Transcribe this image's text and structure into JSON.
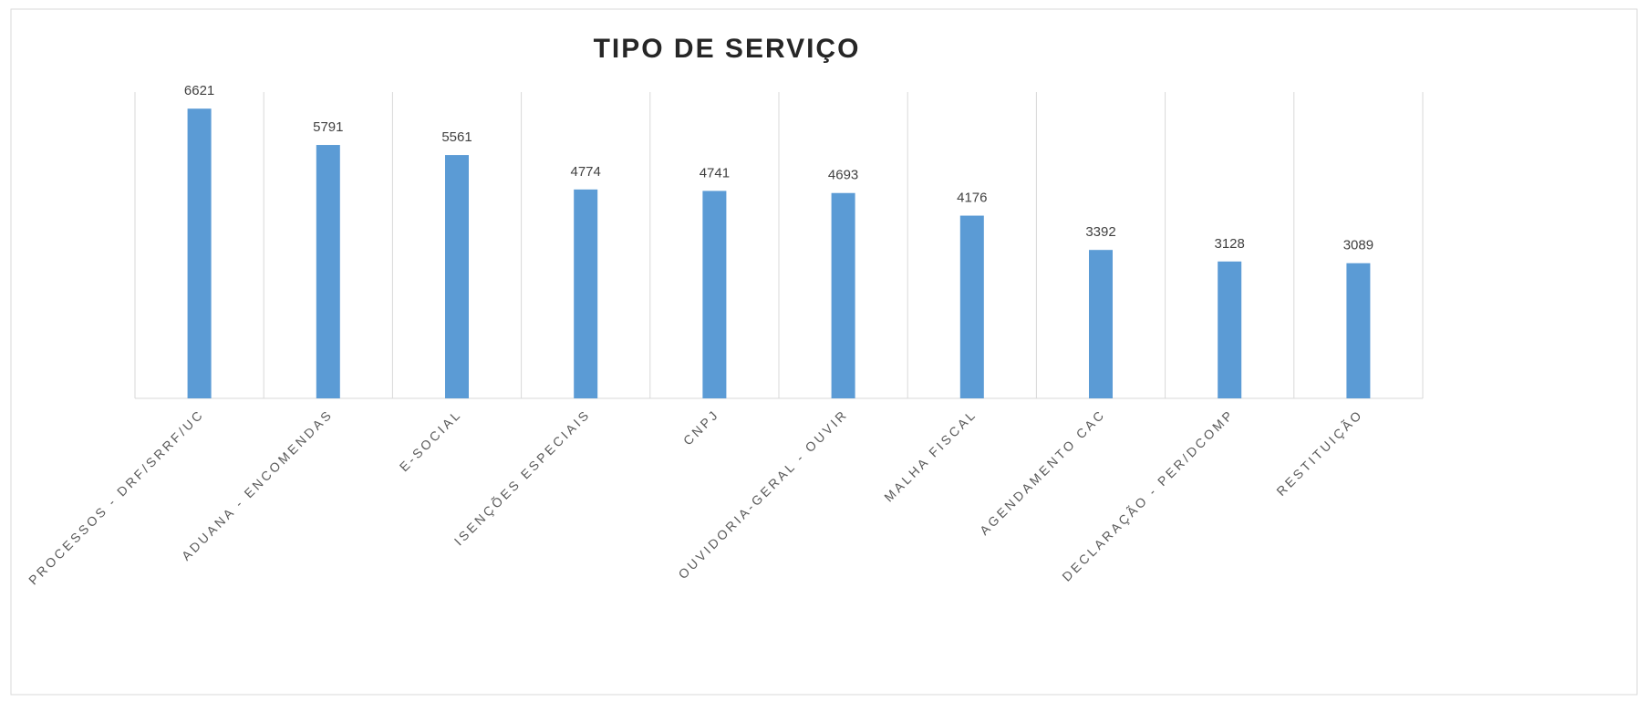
{
  "chart_data": {
    "type": "bar",
    "title": "TIPO DE SERVIÇO",
    "categories": [
      "PROCESSOS - DRF/SRRF/UC",
      "ADUANA - ENCOMENDAS",
      "E-SOCIAL",
      "ISENÇÕES ESPECIAIS",
      "CNPJ",
      "OUVIDORIA-GERAL - OUVIR",
      "MALHA FISCAL",
      "AGENDAMENTO CAC",
      "DECLARAÇÃO - PER/DCOMP",
      "RESTITUIÇÃO"
    ],
    "values": [
      6621,
      5791,
      5561,
      4774,
      4741,
      4693,
      4176,
      3392,
      3128,
      3089
    ],
    "color": "#5b9bd5",
    "ylim": [
      0,
      7000
    ],
    "grid": true
  }
}
